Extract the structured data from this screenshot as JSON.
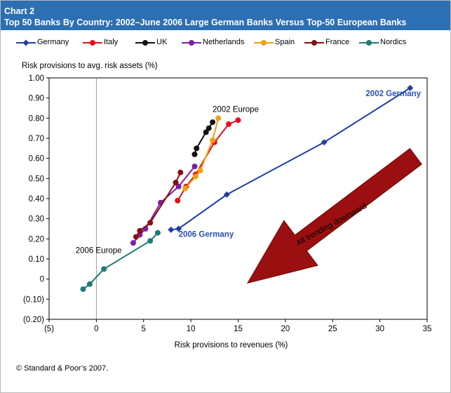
{
  "header": {
    "chart_number": "Chart 2",
    "title": "Top 50 Banks By Country: 2002–June 2006 Large German Banks Versus Top-50 European Banks"
  },
  "footer": {
    "source": "© Standard & Poor’s 2007."
  },
  "chart_data": {
    "type": "line",
    "title": "Top 50 Banks By Country: 2002–June 2006 Large German Banks Versus Top-50 European Banks",
    "xlabel": "Risk provisions to revenues (%)",
    "ylabel": "Risk provisions to avg. risk assets (%)",
    "xlim": [
      -5,
      35
    ],
    "ylim": [
      -0.2,
      1.0
    ],
    "x_ticks": [
      -5,
      0,
      5,
      10,
      15,
      20,
      25,
      30,
      35
    ],
    "x_tick_labels": [
      "(5)",
      "0",
      "5",
      "10",
      "15",
      "20",
      "25",
      "30",
      "35"
    ],
    "y_ticks": [
      1.0,
      0.9,
      0.8,
      0.7,
      0.6,
      0.5,
      0.4,
      0.3,
      0.2,
      0.1,
      0,
      -0.1,
      -0.2
    ],
    "y_tick_labels": [
      "1.00",
      "0.90",
      "0.80",
      "0.70",
      "0.60",
      "0.50",
      "0.40",
      "0.30",
      "0.20",
      "0.10",
      "0",
      "(0.10)",
      "(0.20)"
    ],
    "legend_position": "top",
    "series": [
      {
        "name": "Germany",
        "color": "#1f3fa6",
        "marker": "diamond",
        "x": [
          33.2,
          24.1,
          13.8,
          8.7,
          7.9
        ],
        "y": [
          0.95,
          0.68,
          0.42,
          0.25,
          0.245
        ]
      },
      {
        "name": "Italy",
        "color": "#e5101c",
        "marker": "circle",
        "x": [
          15.0,
          14.0,
          12.5,
          10.5,
          9.5,
          8.6
        ],
        "y": [
          0.79,
          0.77,
          0.68,
          0.52,
          0.46,
          0.39
        ]
      },
      {
        "name": "UK",
        "color": "#111111",
        "marker": "circle",
        "x": [
          12.3,
          11.9,
          11.6,
          10.6,
          10.4
        ],
        "y": [
          0.78,
          0.75,
          0.73,
          0.65,
          0.62
        ]
      },
      {
        "name": "Netherlands",
        "color": "#7a1ea8",
        "marker": "circle",
        "x": [
          10.4,
          8.7,
          6.8,
          5.2,
          4.6,
          3.9
        ],
        "y": [
          0.56,
          0.46,
          0.38,
          0.25,
          0.22,
          0.18
        ]
      },
      {
        "name": "Spain",
        "color": "#f0a010",
        "marker": "circle",
        "x": [
          12.9,
          12.3,
          11.0,
          10.5,
          9.4
        ],
        "y": [
          0.8,
          0.69,
          0.54,
          0.51,
          0.45
        ]
      },
      {
        "name": "France",
        "color": "#8b0d0d",
        "marker": "circle",
        "x": [
          8.9,
          8.4,
          5.7,
          4.6,
          4.2
        ],
        "y": [
          0.53,
          0.48,
          0.28,
          0.24,
          0.21
        ]
      },
      {
        "name": "Nordics",
        "color": "#1f7d74",
        "marker": "circle",
        "x": [
          6.5,
          5.7,
          0.8,
          -0.7,
          -1.4
        ],
        "y": [
          0.23,
          0.19,
          0.05,
          -0.025,
          -0.05
        ]
      }
    ],
    "annotations": [
      {
        "text": "2002 Germany",
        "x": 28.5,
        "y": 0.91,
        "color": "#2a4fb6",
        "bold": true
      },
      {
        "text": "2006 Germany",
        "x": 8.7,
        "y": 0.21,
        "color": "#2a4fb6",
        "bold": true
      },
      {
        "text": "2002 Europe",
        "x": 12.3,
        "y": 0.83,
        "color": "#000000",
        "bold": false
      },
      {
        "text": "2006 Europe",
        "x": -2.2,
        "y": 0.13,
        "color": "#000000",
        "bold": false
      },
      {
        "text": "All trending downward",
        "x": 25.0,
        "y": 0.26,
        "color": "#000000",
        "bold": false,
        "rotate": -29
      }
    ],
    "arrow": {
      "from": [
        33.8,
        0.61
      ],
      "to": [
        16.0,
        -0.02
      ],
      "color": "#9b0f10"
    },
    "vertical_reference_line_at": 0
  }
}
